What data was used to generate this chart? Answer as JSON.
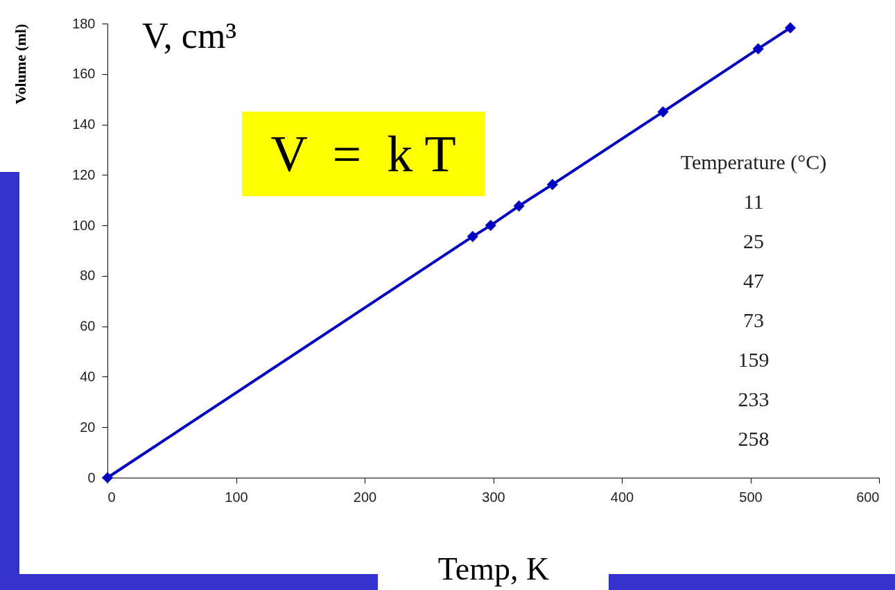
{
  "chart_data": {
    "type": "line",
    "xlabel": "Temp, K",
    "ylabel": "Volume (ml)",
    "x": [
      0,
      284,
      298,
      320,
      346,
      432,
      506,
      531
    ],
    "series": [
      {
        "color": "#0000c0",
        "values": [
          0,
          95.6,
          100,
          107.7,
          116.2,
          145,
          170,
          178.3
        ]
      }
    ],
    "xlim": [
      0,
      600
    ],
    "ylim": [
      0,
      180
    ],
    "xticks": [
      0,
      100,
      200,
      300,
      400,
      500,
      600
    ],
    "yticks": [
      0,
      20,
      40,
      60,
      80,
      100,
      120,
      140,
      160,
      180
    ],
    "grid": false,
    "marker": "diamond",
    "line_style": "solid",
    "annotations": [
      "V, cm³",
      "V  =  k T",
      "Temperature (°C)",
      "11",
      "25",
      "47",
      "73",
      "159",
      "233",
      "258"
    ]
  }
}
